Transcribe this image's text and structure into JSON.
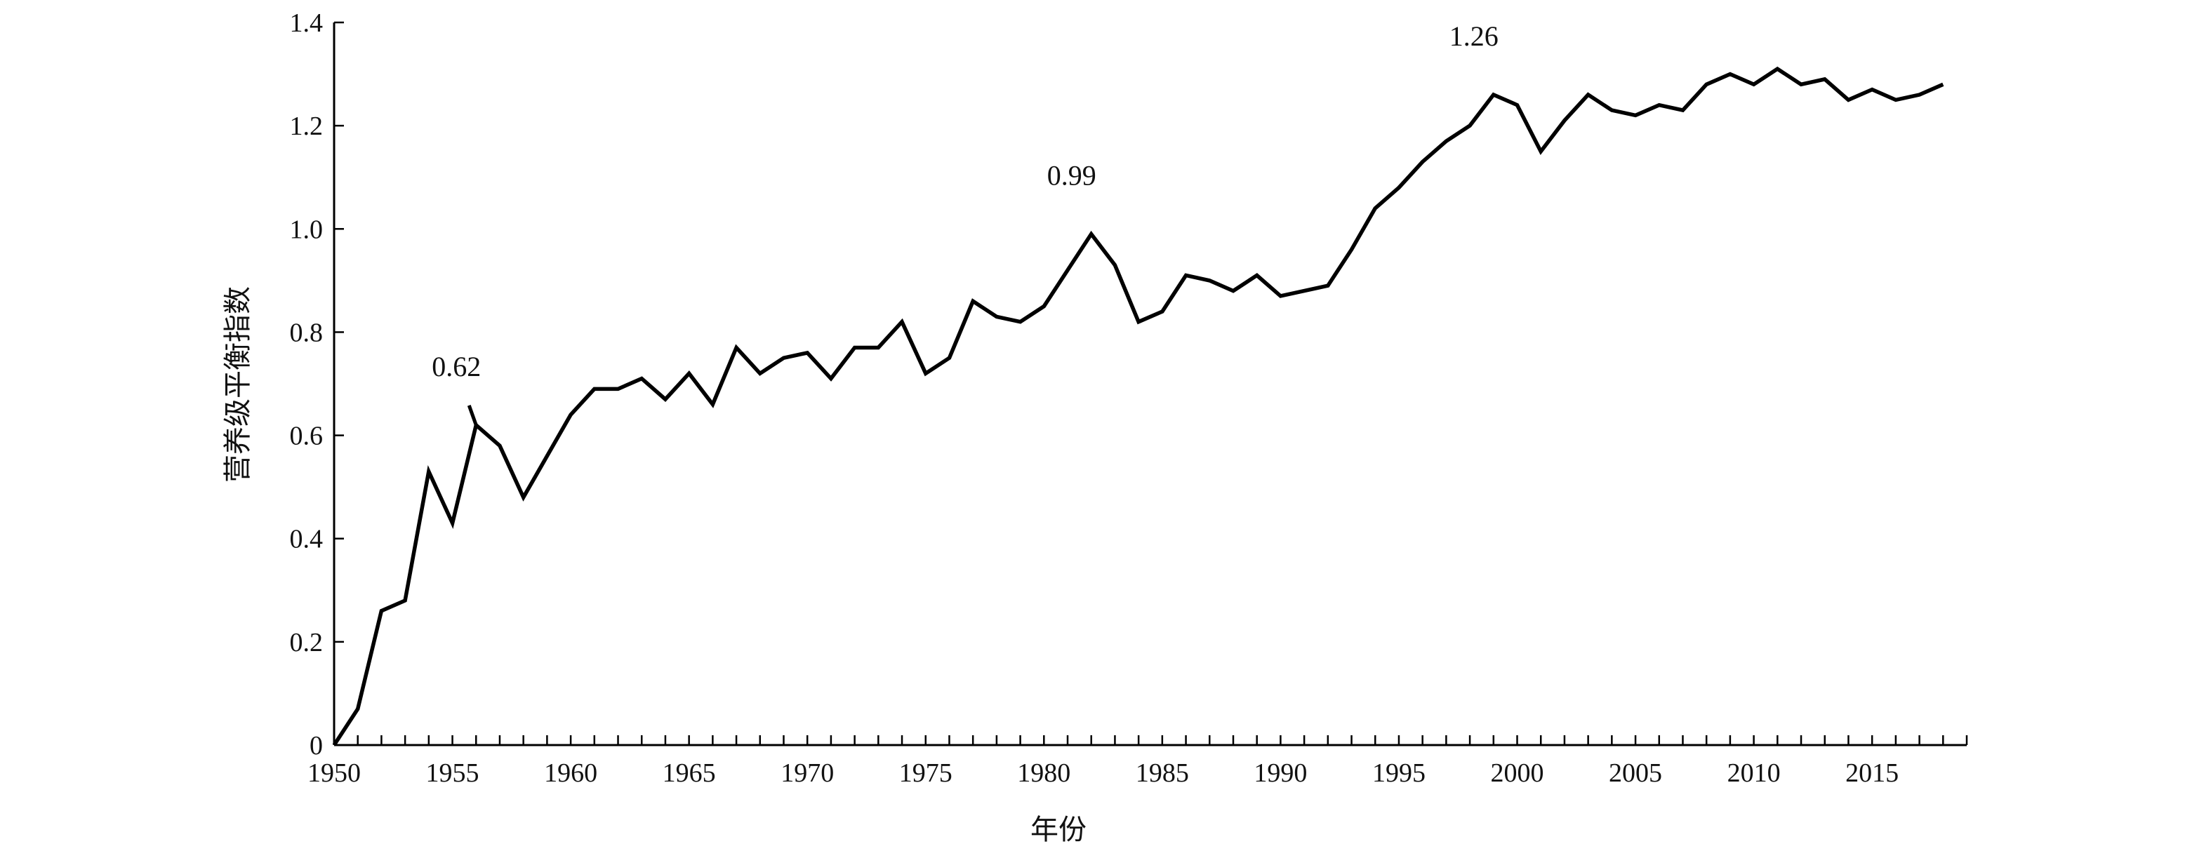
{
  "chart_data": {
    "type": "line",
    "title": "",
    "xlabel": "年份",
    "ylabel": "营养级平衡指数",
    "xlim": [
      1950,
      2019
    ],
    "ylim": [
      0,
      1.4
    ],
    "xticks": [
      1950,
      1955,
      1960,
      1965,
      1970,
      1975,
      1980,
      1985,
      1990,
      1995,
      2000,
      2005,
      2010,
      2015
    ],
    "yticks": [
      0,
      0.2,
      0.4,
      0.6,
      0.8,
      1.0,
      1.2,
      1.4
    ],
    "ytick_labels": [
      "0",
      "0.2",
      "0.4",
      "0.6",
      "0.8",
      "1.0",
      "1.2",
      "1.4"
    ],
    "grid": false,
    "line_color": "#000000",
    "series": [
      {
        "x": [
          1950,
          1951,
          1952,
          1953,
          1954,
          1955,
          1956,
          1957,
          1958,
          1959,
          1960,
          1961,
          1962,
          1963,
          1964,
          1965,
          1966,
          1967,
          1968,
          1969,
          1970,
          1971,
          1972,
          1973,
          1974,
          1975,
          1976,
          1977,
          1978,
          1979,
          1980,
          1981,
          1982,
          1983,
          1984,
          1985,
          1986,
          1987,
          1988,
          1989,
          1990,
          1991,
          1992,
          1993,
          1994,
          1995,
          1996,
          1997,
          1998,
          1999,
          2000,
          2001,
          2002,
          2003,
          2004,
          2005,
          2006,
          2007,
          2008,
          2009,
          2010,
          2011,
          2012,
          2013,
          2014,
          2015,
          2016,
          2017,
          2018
        ],
        "y": [
          0.0,
          0.07,
          0.26,
          0.28,
          0.53,
          0.43,
          0.62,
          0.58,
          0.48,
          0.56,
          0.64,
          0.69,
          0.69,
          0.71,
          0.67,
          0.72,
          0.66,
          0.77,
          0.72,
          0.75,
          0.76,
          0.71,
          0.77,
          0.77,
          0.82,
          0.72,
          0.75,
          0.86,
          0.83,
          0.82,
          0.85,
          0.92,
          0.99,
          0.93,
          0.82,
          0.84,
          0.91,
          0.9,
          0.88,
          0.91,
          0.87,
          0.88,
          0.89,
          0.96,
          1.04,
          1.08,
          1.13,
          1.17,
          1.2,
          1.26,
          1.24,
          1.15,
          1.21,
          1.26,
          1.23,
          1.22,
          1.24,
          1.23,
          1.28,
          1.3,
          1.28,
          1.31,
          1.28,
          1.29,
          1.25,
          1.27,
          1.25,
          1.26,
          1.28
        ]
      }
    ],
    "annotations": [
      {
        "text": "0.62",
        "x": 1956,
        "y": 0.62
      },
      {
        "text": "0.99",
        "x": 1982,
        "y": 0.99
      },
      {
        "text": "1.26",
        "x": 1999,
        "y": 1.26
      }
    ]
  }
}
